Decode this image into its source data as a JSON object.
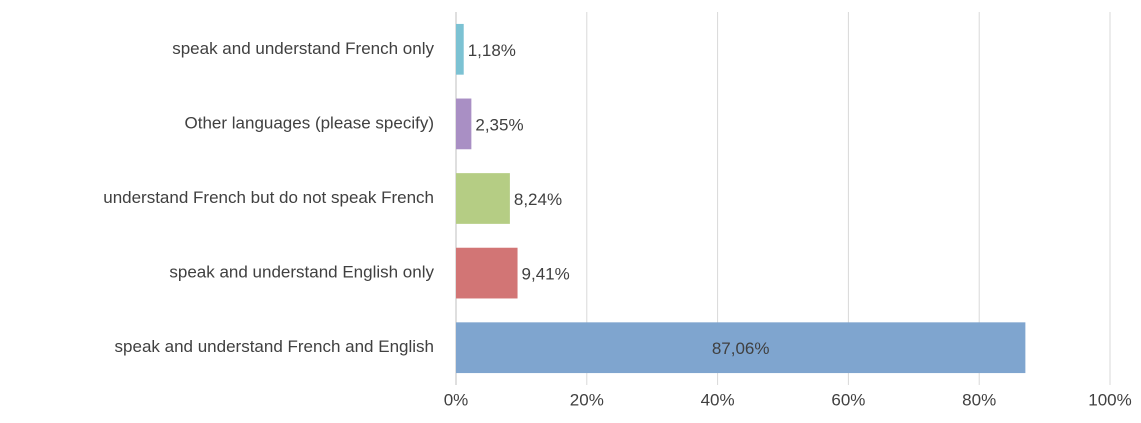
{
  "chart_data": {
    "type": "hbar",
    "categories": [
      "speak and understand French only",
      "Other languages (please specify)",
      "understand French but do not speak French",
      "speak and understand English only",
      "speak and understand French and English"
    ],
    "values": [
      1.18,
      2.35,
      8.24,
      9.41,
      87.06
    ],
    "value_labels": [
      "1,18%",
      "2,35%",
      "8,24%",
      "9,41%",
      "87,06%"
    ],
    "colors": [
      "#7cc2d3",
      "#a98fc4",
      "#b5cd84",
      "#d27575",
      "#7fa5cf"
    ],
    "xlim": [
      0,
      100
    ],
    "xticks": [
      {
        "value": 0,
        "label": "0%"
      },
      {
        "value": 20,
        "label": "20%"
      },
      {
        "value": 40,
        "label": "40%"
      },
      {
        "value": 60,
        "label": "60%"
      },
      {
        "value": 80,
        "label": "80%"
      },
      {
        "value": 100,
        "label": "100%"
      }
    ],
    "grid": true
  }
}
